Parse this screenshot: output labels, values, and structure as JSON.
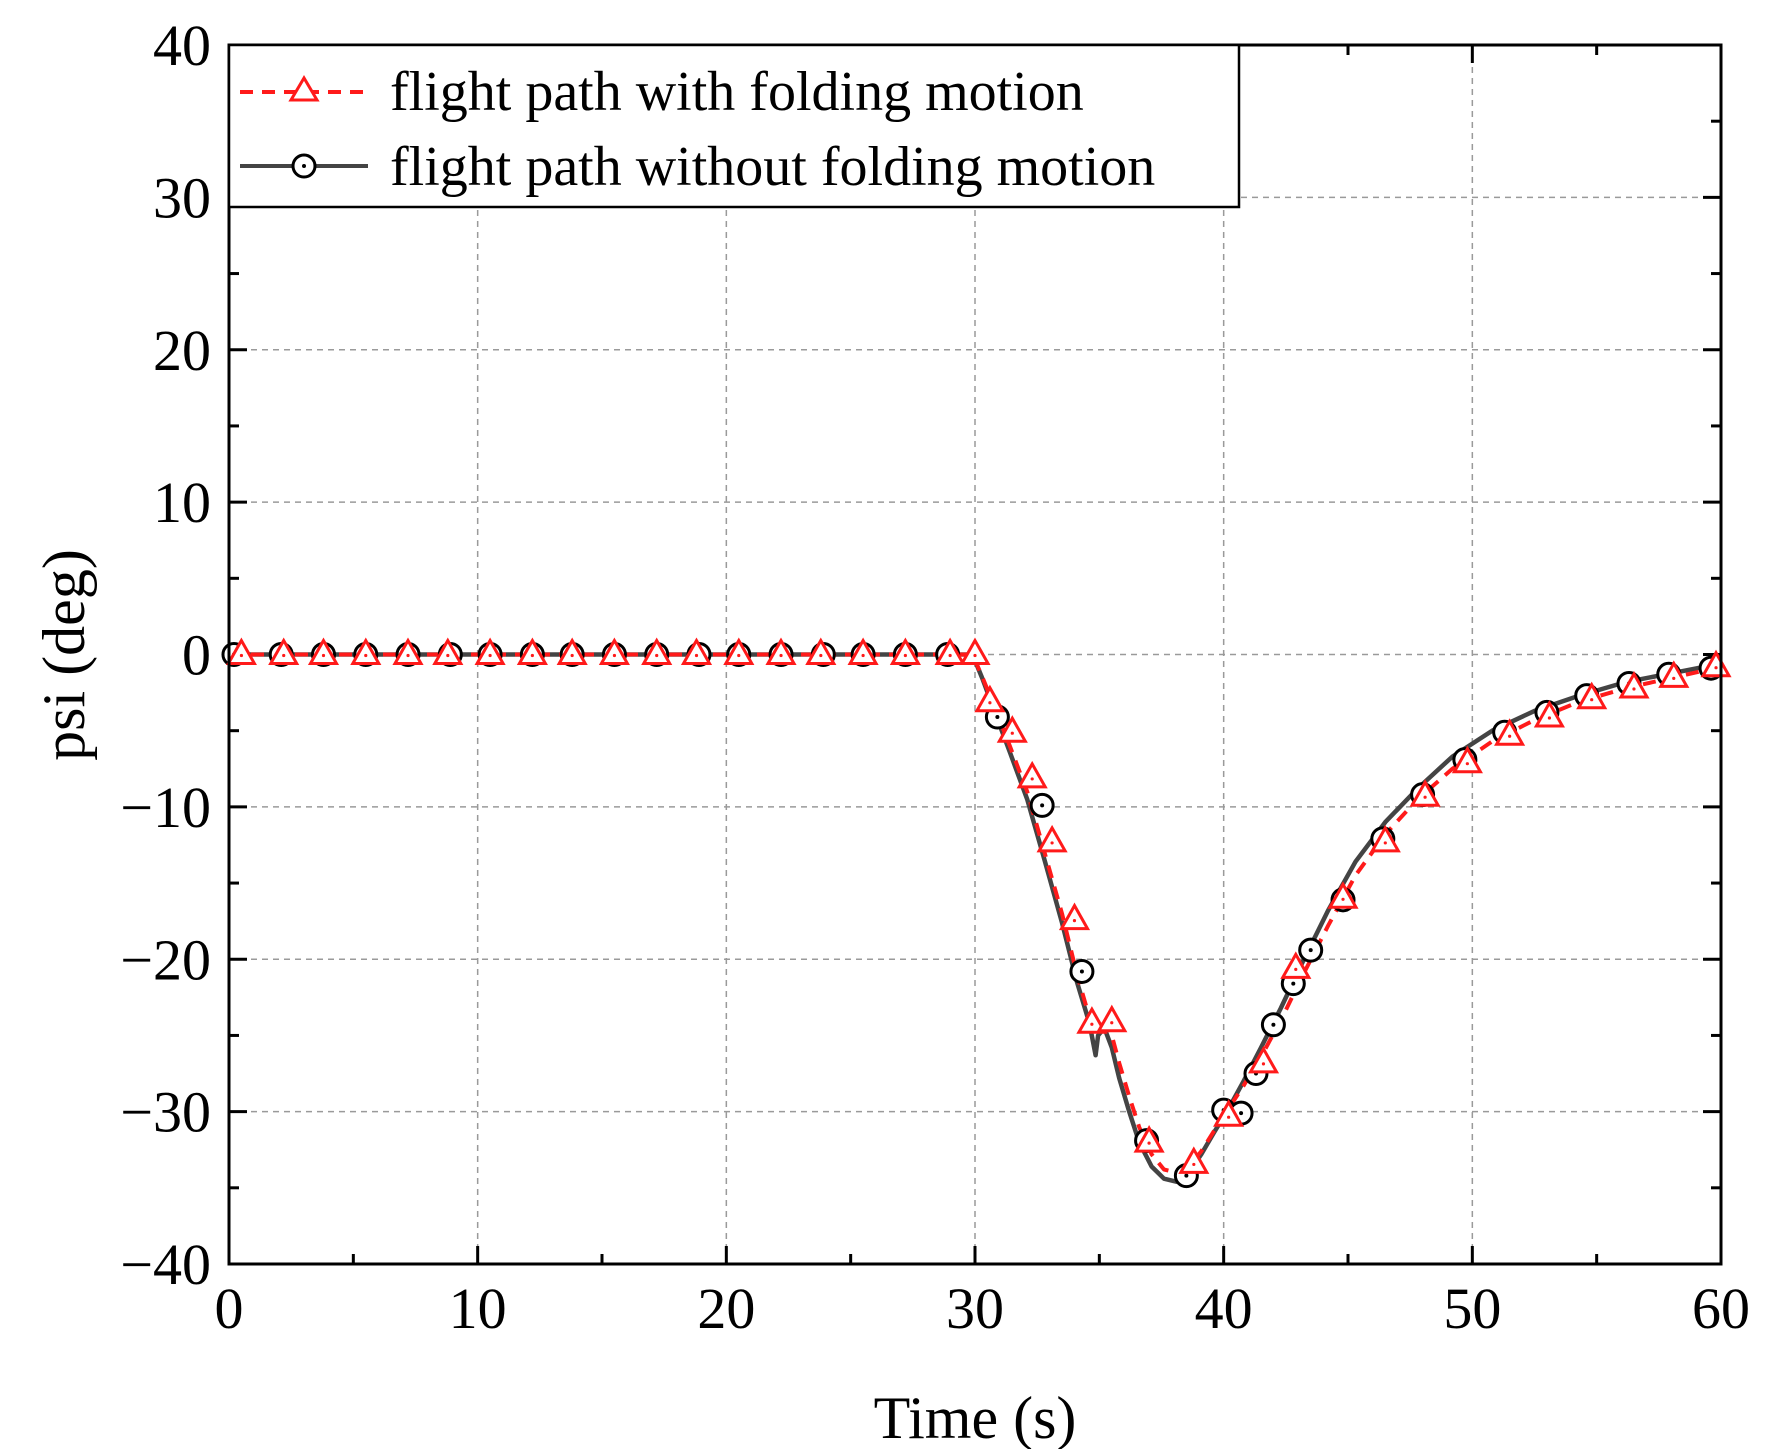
{
  "chart_data": {
    "type": "line",
    "title": "",
    "xlabel": "Time (s)",
    "ylabel": "psi (deg)",
    "xlim": [
      0,
      60
    ],
    "ylim": [
      -40,
      40
    ],
    "xticks": [
      0,
      10,
      20,
      30,
      40,
      50,
      60
    ],
    "yticks": [
      40,
      30,
      20,
      10,
      0,
      -10,
      -20,
      -30,
      -40
    ],
    "xtick_labels": [
      "0",
      "10",
      "20",
      "30",
      "40",
      "50",
      "60"
    ],
    "ytick_labels": [
      "40",
      "30",
      "20",
      "10",
      "0",
      "−10",
      "−20",
      "−30",
      "−40"
    ],
    "grid": true,
    "legend_position": "top-left",
    "colors": {
      "with_folding": "#ff1a1a",
      "without_folding": "#444444",
      "grid": "#9a9a9a"
    },
    "series": [
      {
        "name": "flight path with folding motion",
        "style": "dashed",
        "marker": "triangle",
        "x": [
          0,
          5,
          10,
          15,
          20,
          25,
          29.9,
          30.3,
          30.8,
          31.4,
          32.1,
          32.8,
          33.5,
          34.1,
          34.6,
          34.9,
          35.2,
          35.5,
          35.8,
          36.2,
          36.6,
          37.1,
          37.6,
          38.1,
          38.6,
          39.1,
          39.6,
          40.2,
          40.8,
          41.5,
          42.3,
          43.2,
          44.2,
          45.3,
          46.5,
          47.8,
          49.2,
          50.8,
          52.5,
          54.3,
          56.2,
          58.1,
          60
        ],
        "y": [
          0,
          0,
          0,
          0,
          0,
          0,
          0,
          -1.5,
          -3.5,
          -6,
          -9,
          -13,
          -17,
          -21,
          -23.8,
          -24.5,
          -24.2,
          -25,
          -26.8,
          -29,
          -31,
          -32.8,
          -33.8,
          -34,
          -33.6,
          -32.6,
          -31.3,
          -29.8,
          -28.3,
          -26.4,
          -24,
          -21,
          -17.8,
          -14.5,
          -11.8,
          -9.5,
          -7.5,
          -5.7,
          -4.3,
          -3.1,
          -2.2,
          -1.5,
          -0.8
        ],
        "markers_x": [
          0.5,
          2.2,
          3.8,
          5.5,
          7.2,
          8.8,
          10.5,
          12.2,
          13.8,
          15.5,
          17.2,
          18.8,
          20.5,
          22.2,
          23.8,
          25.5,
          27.2,
          29.0,
          30.0,
          30.6,
          31.5,
          32.3,
          33.1,
          34.0,
          34.7,
          35.5,
          37.0,
          38.8,
          40.2,
          41.6,
          42.9,
          44.8,
          46.5,
          48.1,
          49.8,
          51.5,
          53.1,
          54.8,
          56.5,
          58.1,
          59.8
        ],
        "markers_y": [
          0,
          0,
          0,
          0,
          0,
          0,
          0,
          0,
          0,
          0,
          0,
          0,
          0,
          0,
          0,
          0,
          0,
          0,
          0,
          -3.1,
          -5.1,
          -8.1,
          -12.3,
          -17.4,
          -24.2,
          -24.1,
          -32.0,
          -33.4,
          -30.3,
          -26.8,
          -20.6,
          -16.0,
          -12.3,
          -9.3,
          -7.1,
          -5.3,
          -4.1,
          -2.9,
          -2.2,
          -1.5,
          -0.8
        ]
      },
      {
        "name": "flight path without folding motion",
        "style": "solid",
        "marker": "circle",
        "x": [
          0,
          5,
          10,
          15,
          20,
          25,
          29.9,
          30.3,
          30.8,
          31.4,
          32.1,
          32.8,
          33.5,
          34.1,
          34.6,
          34.85,
          34.95,
          35.2,
          35.5,
          35.8,
          36.2,
          36.6,
          37.1,
          37.6,
          38.1,
          38.6,
          39.1,
          39.6,
          40.2,
          40.8,
          41.5,
          42.3,
          43.2,
          44.2,
          45.3,
          46.5,
          47.8,
          49.2,
          50.8,
          52.5,
          54.3,
          56.2,
          58.1,
          60
        ],
        "y": [
          0,
          0,
          0,
          0,
          0,
          0,
          0,
          -1.6,
          -3.8,
          -6.4,
          -9.5,
          -13.5,
          -17.6,
          -21.5,
          -24.2,
          -26.3,
          -25.0,
          -24.5,
          -25.8,
          -27.8,
          -30.0,
          -32.0,
          -33.6,
          -34.4,
          -34.6,
          -34.0,
          -32.8,
          -31.4,
          -29.8,
          -28.0,
          -25.8,
          -23.2,
          -20.1,
          -16.8,
          -13.6,
          -11.0,
          -8.8,
          -6.7,
          -5.0,
          -3.7,
          -2.7,
          -1.8,
          -1.2,
          -0.6
        ],
        "markers_x": [
          0.2,
          2.1,
          3.8,
          5.5,
          7.2,
          8.9,
          10.5,
          12.2,
          13.8,
          15.5,
          17.2,
          18.9,
          20.5,
          22.2,
          23.9,
          25.5,
          27.2,
          28.9,
          30.9,
          32.7,
          34.3,
          36.9,
          38.5,
          40.0,
          40.7,
          41.3,
          42.0,
          42.8,
          43.5,
          44.8,
          46.4,
          48.0,
          49.7,
          51.3,
          53.0,
          54.6,
          56.3,
          57.9,
          59.6
        ],
        "markers_y": [
          0,
          0,
          0,
          0,
          0,
          0,
          0,
          0,
          0,
          0,
          0,
          0,
          0,
          0,
          0,
          0,
          0,
          0,
          -4.1,
          -9.9,
          -20.8,
          -31.9,
          -34.2,
          -29.9,
          -30.1,
          -27.5,
          -24.3,
          -21.6,
          -19.4,
          -16.1,
          -12.1,
          -9.2,
          -6.9,
          -5.1,
          -3.8,
          -2.7,
          -1.9,
          -1.3,
          -0.9
        ]
      }
    ]
  }
}
